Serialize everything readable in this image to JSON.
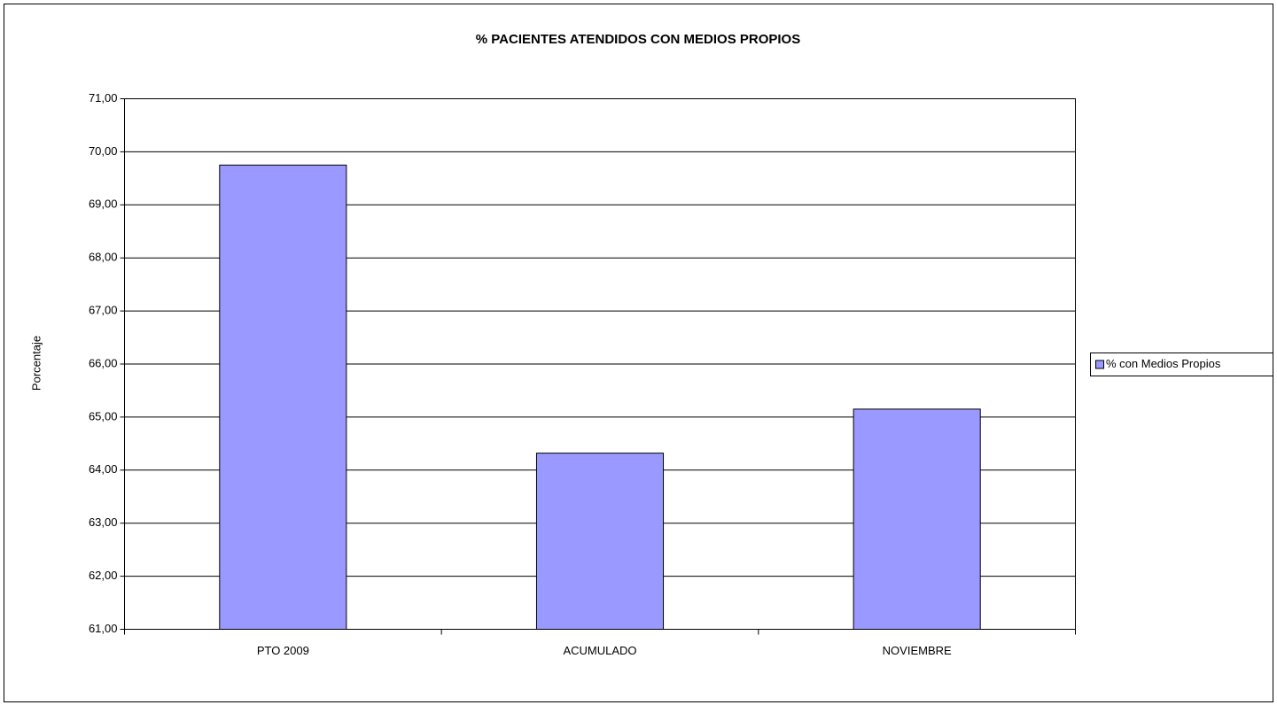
{
  "chart_data": {
    "type": "bar",
    "title": "% PACIENTES ATENDIDOS CON MEDIOS PROPIOS",
    "y_label": "Porcentaje",
    "categories": [
      "PTO 2009",
      "ACUMULADO",
      "NOVIEMBRE"
    ],
    "series": [
      {
        "name": "% con Medios Propios",
        "color": "#9999ff",
        "values": [
          69.75,
          64.32,
          65.15
        ]
      }
    ],
    "ylim": [
      61,
      71
    ],
    "yticks": [
      {
        "value": 61,
        "label": "61,00"
      },
      {
        "value": 62,
        "label": "62,00"
      },
      {
        "value": 63,
        "label": "63,00"
      },
      {
        "value": 64,
        "label": "64,00"
      },
      {
        "value": 65,
        "label": "65,00"
      },
      {
        "value": 66,
        "label": "66,00"
      },
      {
        "value": 67,
        "label": "67,00"
      },
      {
        "value": 68,
        "label": "68,00"
      },
      {
        "value": 69,
        "label": "69,00"
      },
      {
        "value": 70,
        "label": "70,00"
      },
      {
        "value": 71,
        "label": "71,00"
      }
    ],
    "grid": true,
    "legend": "right"
  }
}
